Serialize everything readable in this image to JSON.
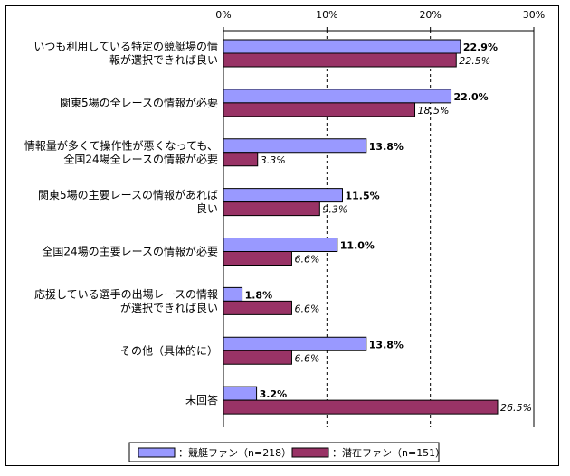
{
  "chart_data": {
    "type": "bar",
    "orientation": "horizontal",
    "title": "",
    "xlabel": "",
    "ylabel": "",
    "xlim": [
      0,
      30
    ],
    "ticks": [
      "0%",
      "10%",
      "20%",
      "30%"
    ],
    "grid": true,
    "legend_position": "bottom",
    "categories": [
      [
        "いつも利用している特定の競艇場の情",
        "報が選択できれば良い"
      ],
      [
        "関東5場の全レースの情報が必要"
      ],
      [
        "情報量が多くて操作性が悪くなっても、",
        "全国24場全レースの情報が必要"
      ],
      [
        "関東5場の主要レースの情報があれば",
        "良い"
      ],
      [
        "全国24場の主要レースの情報が必要"
      ],
      [
        "応援している選手の出場レースの情報",
        "が選択できれば良い"
      ],
      [
        "その他（具体的に）"
      ],
      [
        "未回答"
      ]
    ],
    "series": [
      {
        "name": "：競艇ファン（n=218）",
        "color": "#9999ff",
        "values": [
          22.9,
          22.0,
          13.8,
          11.5,
          11.0,
          1.8,
          13.8,
          3.2
        ],
        "labels": [
          "22.9%",
          "22.0%",
          "13.8%",
          "11.5%",
          "11.0%",
          "1.8%",
          "13.8%",
          "3.2%"
        ]
      },
      {
        "name": "：潜在ファン（n=151）",
        "color": "#993366",
        "values": [
          22.5,
          18.5,
          3.3,
          9.3,
          6.6,
          6.6,
          6.6,
          26.5
        ],
        "labels": [
          "22.5%",
          "18.5%",
          "3.3%",
          "9.3%",
          "6.6%",
          "6.6%",
          "6.6%",
          "26.5%"
        ]
      }
    ]
  }
}
